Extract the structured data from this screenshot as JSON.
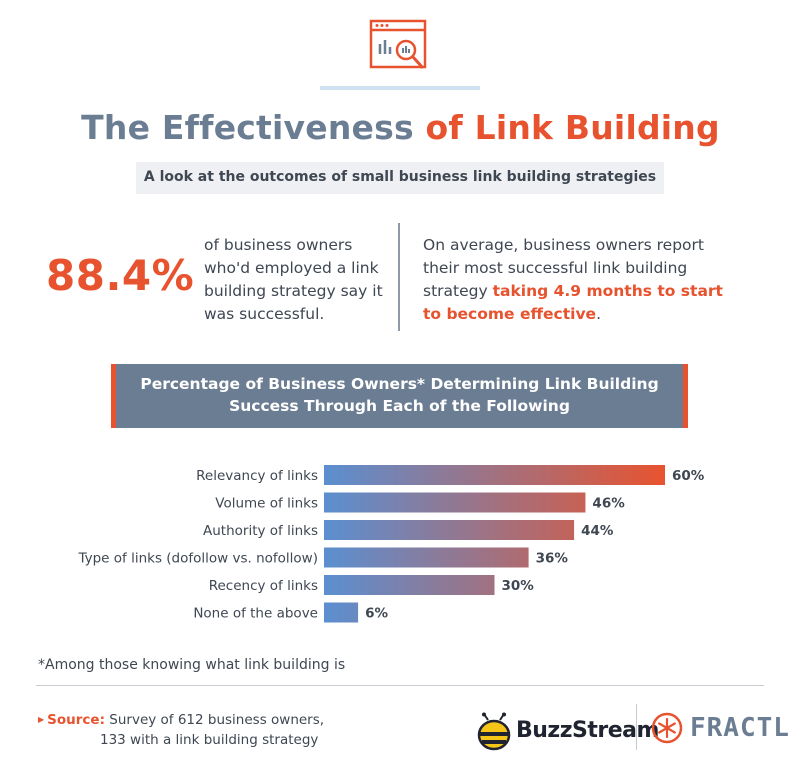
{
  "header": {
    "title_part1": "The Effectiveness",
    "title_part2": "of Link Building",
    "subtitle": "A look at the outcomes of small business link building strategies"
  },
  "stats": {
    "big_value": "88.4%",
    "big_caption": "of business owners who'd employed a link building strategy say it was successful.",
    "avg_prefix": "On average, business owners report their most successful link building strategy ",
    "avg_highlight": "taking 4.9 months to start to become effective",
    "avg_suffix": "."
  },
  "banner": {
    "line1": "Percentage of Business Owners* Determining Link Building",
    "line2": "Success Through Each of the Following"
  },
  "chart_data": {
    "type": "bar",
    "orientation": "horizontal",
    "categories": [
      "Relevancy of links",
      "Volume of links",
      "Authority of links",
      "Type of links (dofollow vs. nofollow)",
      "Recency of links",
      "None of the above"
    ],
    "values": [
      60,
      46,
      44,
      36,
      30,
      6
    ],
    "value_labels": [
      "60%",
      "46%",
      "44%",
      "36%",
      "30%",
      "6%"
    ],
    "xlim": [
      0,
      60
    ],
    "grid": false,
    "colors": {
      "bar_start": "#5b8fd1",
      "bar_end": "#e8532f"
    }
  },
  "footnote": "*Among those knowing what link building is",
  "source": {
    "label": "Source:",
    "line1": "Survey of 612 business owners,",
    "line2": "133 with a link building strategy"
  },
  "logos": {
    "buzzstream": "BuzzStream",
    "fractl": "FRACTL"
  },
  "colors": {
    "accent": "#e8532f",
    "slate": "#6b7d92",
    "text": "#3f4752"
  },
  "icons": [
    "analytics-window-icon",
    "bee-logo-icon",
    "fractl-snowflake-icon"
  ]
}
